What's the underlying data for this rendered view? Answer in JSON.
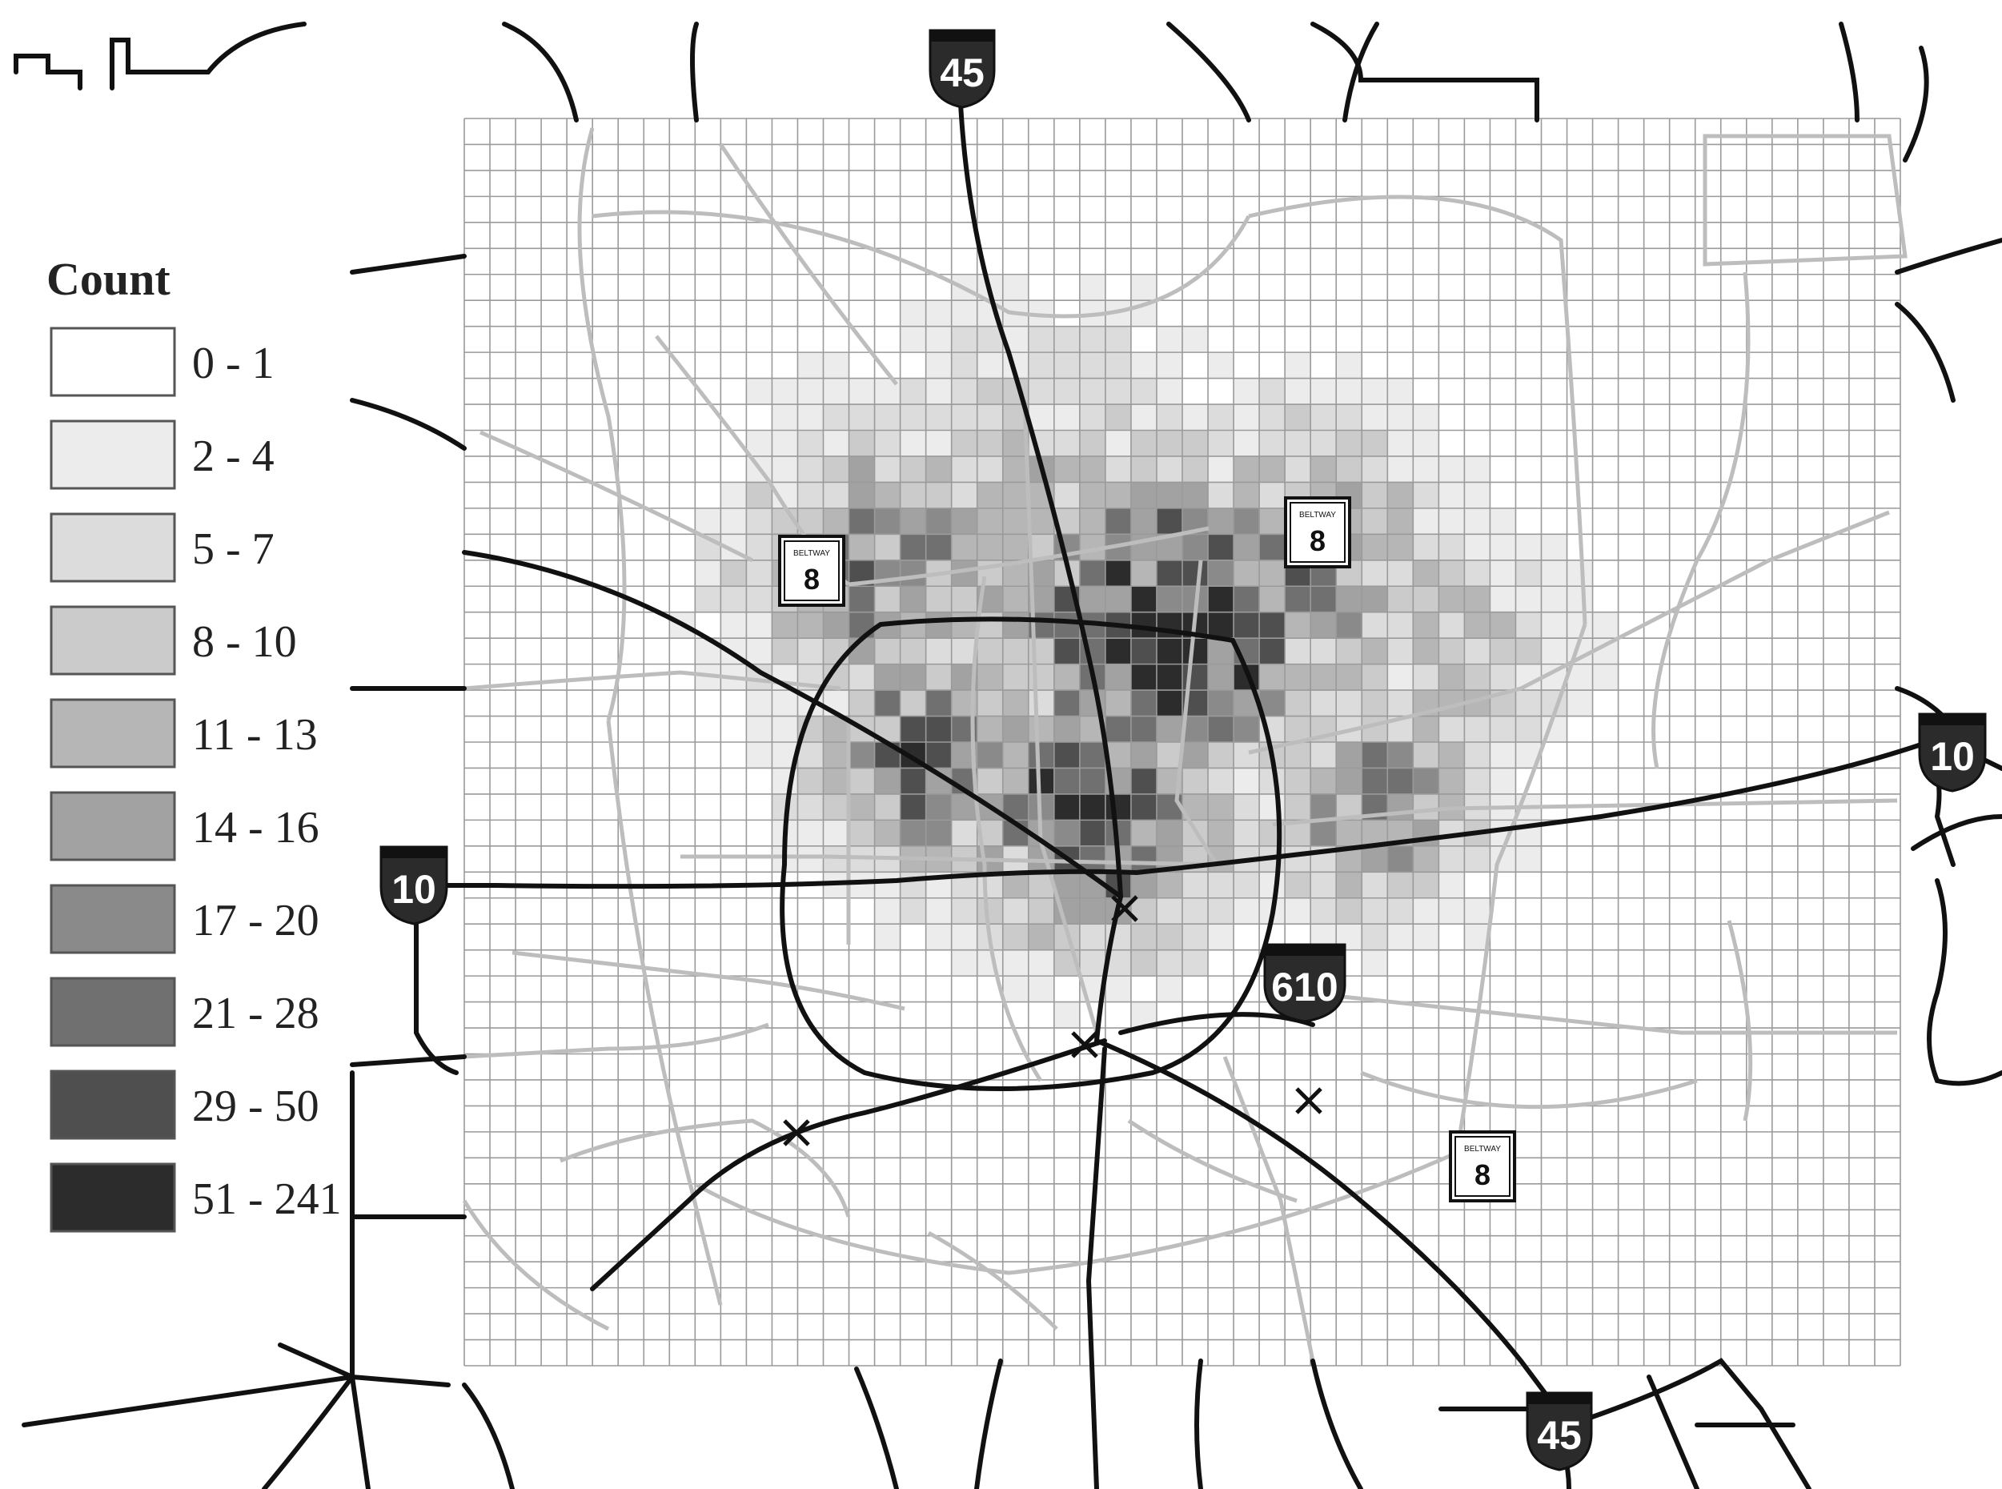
{
  "legend": {
    "title": "Count",
    "classes": [
      {
        "label": "0 - 1",
        "color": "#ffffff"
      },
      {
        "label": "2 - 4",
        "color": "#ececec"
      },
      {
        "label": "5 - 7",
        "color": "#dcdcdc"
      },
      {
        "label": "8 - 10",
        "color": "#cbcbcb"
      },
      {
        "label": "11 - 13",
        "color": "#b6b6b6"
      },
      {
        "label": "14 - 16",
        "color": "#a2a2a2"
      },
      {
        "label": "17 - 20",
        "color": "#8a8a8a"
      },
      {
        "label": "21 - 28",
        "color": "#707070"
      },
      {
        "label": "29 - 50",
        "color": "#4f4f4f"
      },
      {
        "label": "51 - 241",
        "color": "#2c2c2c"
      }
    ]
  },
  "grid": {
    "columns": 56,
    "rows": 48
  },
  "shields": {
    "i45_top": "45",
    "i45_bottom": "45",
    "i10_left": "10",
    "i10_right": "10",
    "i610": "610",
    "beltway_nw_label": "BELTWAY",
    "beltway_nw_number": "8",
    "beltway_ne_label": "BELTWAY",
    "beltway_ne_number": "8",
    "beltway_se_label": "BELTWAY",
    "beltway_se_number": "8"
  },
  "colors": {
    "grid_line": "#9a9a9a",
    "highway": "#111111",
    "road": "#bdbdbd",
    "shield_fill": "#2b2b2b"
  }
}
